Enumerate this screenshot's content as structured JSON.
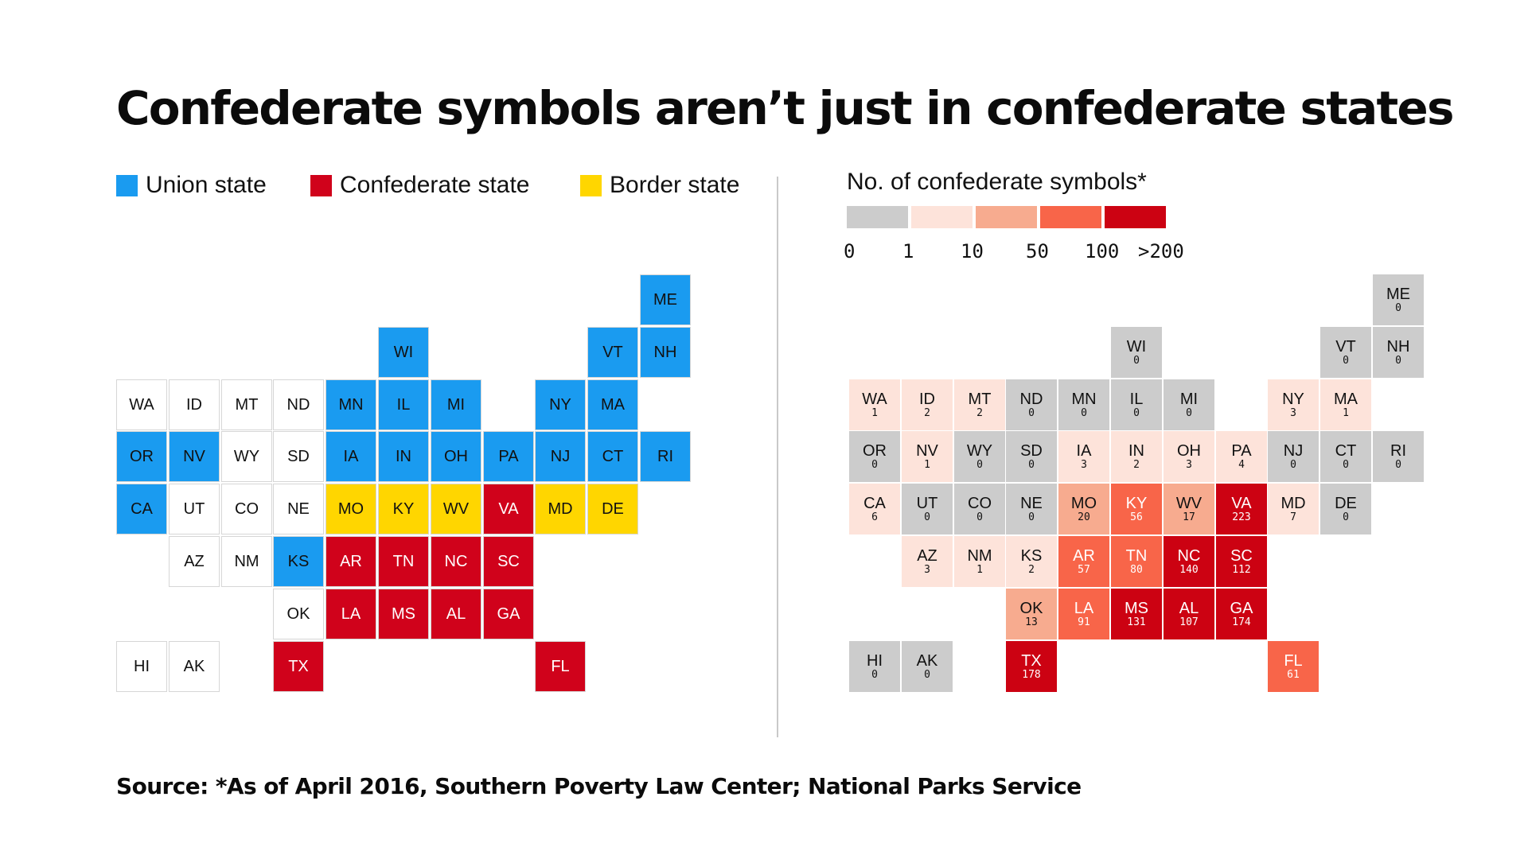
{
  "title": "Confederate symbols aren’t just in confederate states",
  "legend_left": [
    {
      "label": "Union state",
      "color": "#1a9bf0"
    },
    {
      "label": "Confederate state",
      "color": "#d0021b"
    },
    {
      "label": "Border state",
      "color": "#ffd600"
    }
  ],
  "legend_right": {
    "title": "No. of confederate symbols*",
    "colors": [
      "#cccccc",
      "#fde3da",
      "#f7ab8f",
      "#f86549",
      "#cc0212"
    ],
    "ticks": [
      "0",
      "1",
      "10",
      "50",
      "100",
      ">200"
    ]
  },
  "status_colors": {
    "union": "#1a9bf0",
    "confederate": "#d0021b",
    "border": "#ffd600",
    "other": "#ffffff"
  },
  "chart_data": {
    "type": "heatmap",
    "states": [
      {
        "abbr": "ME",
        "row": 0,
        "col": 10,
        "status": "union",
        "count": 0
      },
      {
        "abbr": "WI",
        "row": 1,
        "col": 5,
        "status": "union",
        "count": 0
      },
      {
        "abbr": "VT",
        "row": 1,
        "col": 9,
        "status": "union",
        "count": 0
      },
      {
        "abbr": "NH",
        "row": 1,
        "col": 10,
        "status": "union",
        "count": 0
      },
      {
        "abbr": "WA",
        "row": 2,
        "col": 0,
        "status": "other",
        "count": 1
      },
      {
        "abbr": "ID",
        "row": 2,
        "col": 1,
        "status": "other",
        "count": 2
      },
      {
        "abbr": "MT",
        "row": 2,
        "col": 2,
        "status": "other",
        "count": 2
      },
      {
        "abbr": "ND",
        "row": 2,
        "col": 3,
        "status": "other",
        "count": 0
      },
      {
        "abbr": "MN",
        "row": 2,
        "col": 4,
        "status": "union",
        "count": 0
      },
      {
        "abbr": "IL",
        "row": 2,
        "col": 5,
        "status": "union",
        "count": 0
      },
      {
        "abbr": "MI",
        "row": 2,
        "col": 6,
        "status": "union",
        "count": 0
      },
      {
        "abbr": "NY",
        "row": 2,
        "col": 8,
        "status": "union",
        "count": 3
      },
      {
        "abbr": "MA",
        "row": 2,
        "col": 9,
        "status": "union",
        "count": 1
      },
      {
        "abbr": "OR",
        "row": 3,
        "col": 0,
        "status": "union",
        "count": 0
      },
      {
        "abbr": "NV",
        "row": 3,
        "col": 1,
        "status": "union",
        "count": 1
      },
      {
        "abbr": "WY",
        "row": 3,
        "col": 2,
        "status": "other",
        "count": 0
      },
      {
        "abbr": "SD",
        "row": 3,
        "col": 3,
        "status": "other",
        "count": 0
      },
      {
        "abbr": "IA",
        "row": 3,
        "col": 4,
        "status": "union",
        "count": 3
      },
      {
        "abbr": "IN",
        "row": 3,
        "col": 5,
        "status": "union",
        "count": 2
      },
      {
        "abbr": "OH",
        "row": 3,
        "col": 6,
        "status": "union",
        "count": 3
      },
      {
        "abbr": "PA",
        "row": 3,
        "col": 7,
        "status": "union",
        "count": 4
      },
      {
        "abbr": "NJ",
        "row": 3,
        "col": 8,
        "status": "union",
        "count": 0
      },
      {
        "abbr": "CT",
        "row": 3,
        "col": 9,
        "status": "union",
        "count": 0
      },
      {
        "abbr": "RI",
        "row": 3,
        "col": 10,
        "status": "union",
        "count": 0
      },
      {
        "abbr": "CA",
        "row": 4,
        "col": 0,
        "status": "union",
        "count": 6
      },
      {
        "abbr": "UT",
        "row": 4,
        "col": 1,
        "status": "other",
        "count": 0
      },
      {
        "abbr": "CO",
        "row": 4,
        "col": 2,
        "status": "other",
        "count": 0
      },
      {
        "abbr": "NE",
        "row": 4,
        "col": 3,
        "status": "other",
        "count": 0
      },
      {
        "abbr": "MO",
        "row": 4,
        "col": 4,
        "status": "border",
        "count": 20
      },
      {
        "abbr": "KY",
        "row": 4,
        "col": 5,
        "status": "border",
        "count": 56
      },
      {
        "abbr": "WV",
        "row": 4,
        "col": 6,
        "status": "border",
        "count": 17
      },
      {
        "abbr": "VA",
        "row": 4,
        "col": 7,
        "status": "confederate",
        "count": 223
      },
      {
        "abbr": "MD",
        "row": 4,
        "col": 8,
        "status": "border",
        "count": 7
      },
      {
        "abbr": "DE",
        "row": 4,
        "col": 9,
        "status": "border",
        "count": 0
      },
      {
        "abbr": "AZ",
        "row": 5,
        "col": 1,
        "status": "other",
        "count": 3
      },
      {
        "abbr": "NM",
        "row": 5,
        "col": 2,
        "status": "other",
        "count": 1
      },
      {
        "abbr": "KS",
        "row": 5,
        "col": 3,
        "status": "union",
        "count": 2
      },
      {
        "abbr": "AR",
        "row": 5,
        "col": 4,
        "status": "confederate",
        "count": 57
      },
      {
        "abbr": "TN",
        "row": 5,
        "col": 5,
        "status": "confederate",
        "count": 80
      },
      {
        "abbr": "NC",
        "row": 5,
        "col": 6,
        "status": "confederate",
        "count": 140
      },
      {
        "abbr": "SC",
        "row": 5,
        "col": 7,
        "status": "confederate",
        "count": 112
      },
      {
        "abbr": "OK",
        "row": 6,
        "col": 3,
        "status": "other",
        "count": 13
      },
      {
        "abbr": "LA",
        "row": 6,
        "col": 4,
        "status": "confederate",
        "count": 91
      },
      {
        "abbr": "MS",
        "row": 6,
        "col": 5,
        "status": "confederate",
        "count": 131
      },
      {
        "abbr": "AL",
        "row": 6,
        "col": 6,
        "status": "confederate",
        "count": 107
      },
      {
        "abbr": "GA",
        "row": 6,
        "col": 7,
        "status": "confederate",
        "count": 174
      },
      {
        "abbr": "HI",
        "row": 7,
        "col": 0,
        "status": "other",
        "count": 0
      },
      {
        "abbr": "AK",
        "row": 7,
        "col": 1,
        "status": "other",
        "count": 0
      },
      {
        "abbr": "TX",
        "row": 7,
        "col": 3,
        "status": "confederate",
        "count": 178
      },
      {
        "abbr": "FL",
        "row": 7,
        "col": 8,
        "status": "confederate",
        "count": 61
      }
    ]
  },
  "source": "Source: *As of April 2016, Southern Poverty Law Center; National Parks Service"
}
